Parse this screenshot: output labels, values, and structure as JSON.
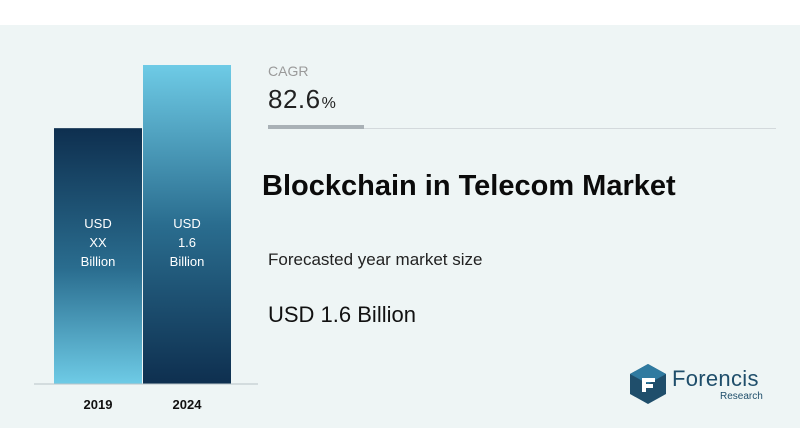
{
  "chart_data": {
    "type": "bar",
    "categories": [
      "2019",
      "2024"
    ],
    "values": [
      null,
      1.6
    ],
    "bar_labels": [
      [
        "USD",
        "XX",
        "Billion"
      ],
      [
        "USD",
        "1.6",
        "Billion"
      ]
    ],
    "unit": "USD Billion"
  },
  "cagr": {
    "label": "CAGR",
    "value": "82.6",
    "unit": "%"
  },
  "title": "Blockchain in Telecom Market",
  "forecast_label": "Forecasted year market size",
  "forecast_value": "USD 1.6 Billion",
  "logo": {
    "name": "Forencis",
    "sub": "Research"
  },
  "colors": {
    "bar_dark": "#0e2f4f",
    "bar_light": "#6ecbe6",
    "background": "#eef5f5"
  }
}
